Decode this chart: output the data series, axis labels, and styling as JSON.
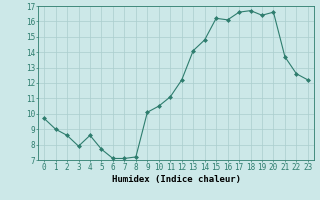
{
  "x": [
    0,
    1,
    2,
    3,
    4,
    5,
    6,
    7,
    8,
    9,
    10,
    11,
    12,
    13,
    14,
    15,
    16,
    17,
    18,
    19,
    20,
    21,
    22,
    23
  ],
  "y": [
    9.7,
    9.0,
    8.6,
    7.9,
    8.6,
    7.7,
    7.1,
    7.1,
    7.2,
    10.1,
    10.5,
    11.1,
    12.2,
    14.1,
    14.8,
    16.2,
    16.1,
    16.6,
    16.7,
    16.4,
    16.6,
    13.7,
    12.6,
    12.2
  ],
  "line_color": "#2e7d6e",
  "marker": "D",
  "marker_size": 2.0,
  "bg_color": "#cce8e8",
  "grid_color": "#aacece",
  "xlabel": "Humidex (Indice chaleur)",
  "xlim": [
    -0.5,
    23.5
  ],
  "ylim": [
    7,
    17
  ],
  "yticks": [
    7,
    8,
    9,
    10,
    11,
    12,
    13,
    14,
    15,
    16,
    17
  ],
  "xticks": [
    0,
    1,
    2,
    3,
    4,
    5,
    6,
    7,
    8,
    9,
    10,
    11,
    12,
    13,
    14,
    15,
    16,
    17,
    18,
    19,
    20,
    21,
    22,
    23
  ],
  "tick_fontsize": 5.5,
  "label_fontsize": 6.5
}
